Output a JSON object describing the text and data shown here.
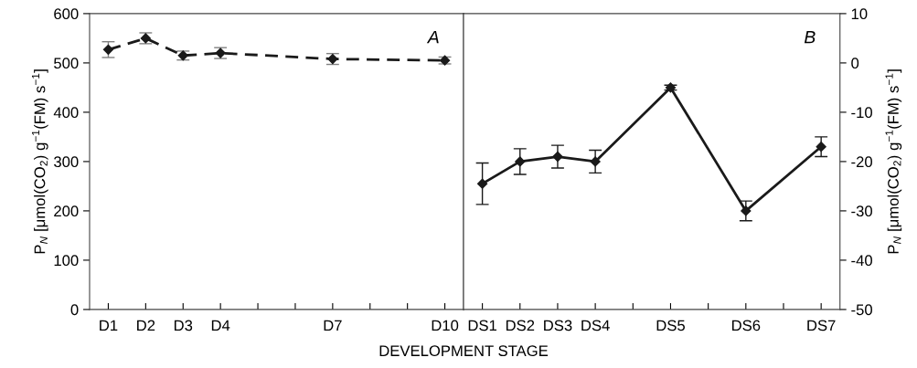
{
  "chart_data": [
    {
      "type": "line",
      "categories": [
        "D1",
        "D2",
        "D3",
        "D4",
        null,
        null,
        "D7",
        null,
        null,
        "D10"
      ],
      "ylim": [
        0,
        600
      ],
      "yticks": [
        0,
        100,
        200,
        300,
        400,
        500,
        600
      ],
      "ylabel": "P$_{N}$ [μmol(CO$_{2}$) g$^{−1}$(FM) s$^{−1}$]",
      "xlabel": "DEVELOPMENT STAGE",
      "series": [
        {
          "color": "#1a1a1a",
          "values": [
            527,
            550,
            515,
            520,
            null,
            null,
            508,
            null,
            null,
            505
          ],
          "errors": [
            16,
            11,
            9,
            11,
            null,
            null,
            11,
            null,
            null,
            7
          ]
        }
      ],
      "marker": "diamond",
      "line_style": "dashed",
      "annotations": [
        "A"
      ]
    },
    {
      "type": "line",
      "categories": [
        "DS1",
        "DS2",
        "DS3",
        "DS4",
        null,
        "DS5",
        null,
        "DS6",
        null,
        "DS7"
      ],
      "ylim": [
        -50,
        10
      ],
      "yticks": [
        -50,
        -40,
        -30,
        -20,
        -10,
        0,
        10
      ],
      "ylabel": "P$_{N}$ [μmol(CO$_{2}$) g$^{−1}$(FM) s$^{−1}$]",
      "series": [
        {
          "color": "#1a1a1a",
          "values": [
            -24.5,
            -20,
            -19,
            -20,
            null,
            -5,
            null,
            -30,
            null,
            -17
          ],
          "errors": [
            4.2,
            2.6,
            2.3,
            2.3,
            null,
            0.5,
            null,
            2,
            null,
            2
          ]
        }
      ],
      "marker": "diamond",
      "line_style": "solid",
      "annotations": [
        "B"
      ]
    }
  ]
}
